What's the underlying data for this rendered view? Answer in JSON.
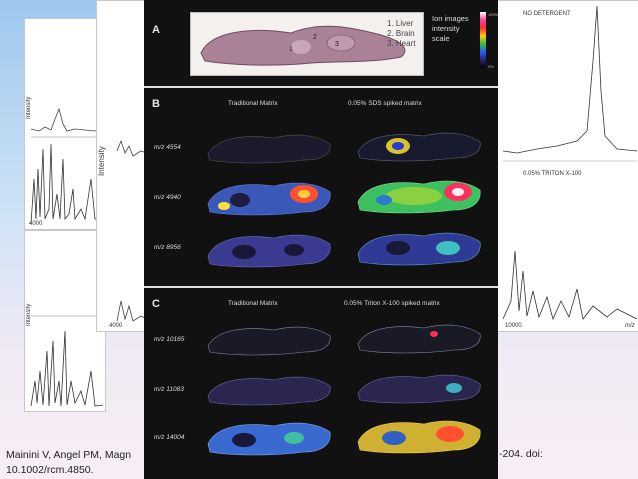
{
  "spectra": {
    "y_label": "Intensity",
    "left_x_ticks": [
      "4000",
      "4000"
    ],
    "right_top_label": "NO DETERGENT",
    "right_bottom_label": "0.05% TRITON X-100",
    "right_x_tick": "10000",
    "right_x_unit": "m/z"
  },
  "figure": {
    "panel_a": {
      "letter": "A",
      "legend": [
        "1. Liver",
        "2. Brain",
        "3. Heart"
      ],
      "scale_title": "Ion images intensity scale",
      "scale_top": "100%",
      "scale_bottom": "0%"
    },
    "panel_b": {
      "letter": "B",
      "col_left": "Traditional Matrix",
      "col_right": "0.05% SDS spiked matrix",
      "rows": [
        "m/z 4554",
        "m/z 4940",
        "m/z 8956"
      ]
    },
    "panel_c": {
      "letter": "C",
      "col_left": "Traditional Matrix",
      "col_right": "0.05% Triton X-100 spiked matrix",
      "rows": [
        "m/z 10165",
        "m/z 11083",
        "m/z 14004"
      ]
    }
  },
  "citation": {
    "line1_start": "Mainini V, Angel PM, Magn",
    "line1_end": "-204. doi:",
    "line2": "10.1002/rcm.4850."
  }
}
